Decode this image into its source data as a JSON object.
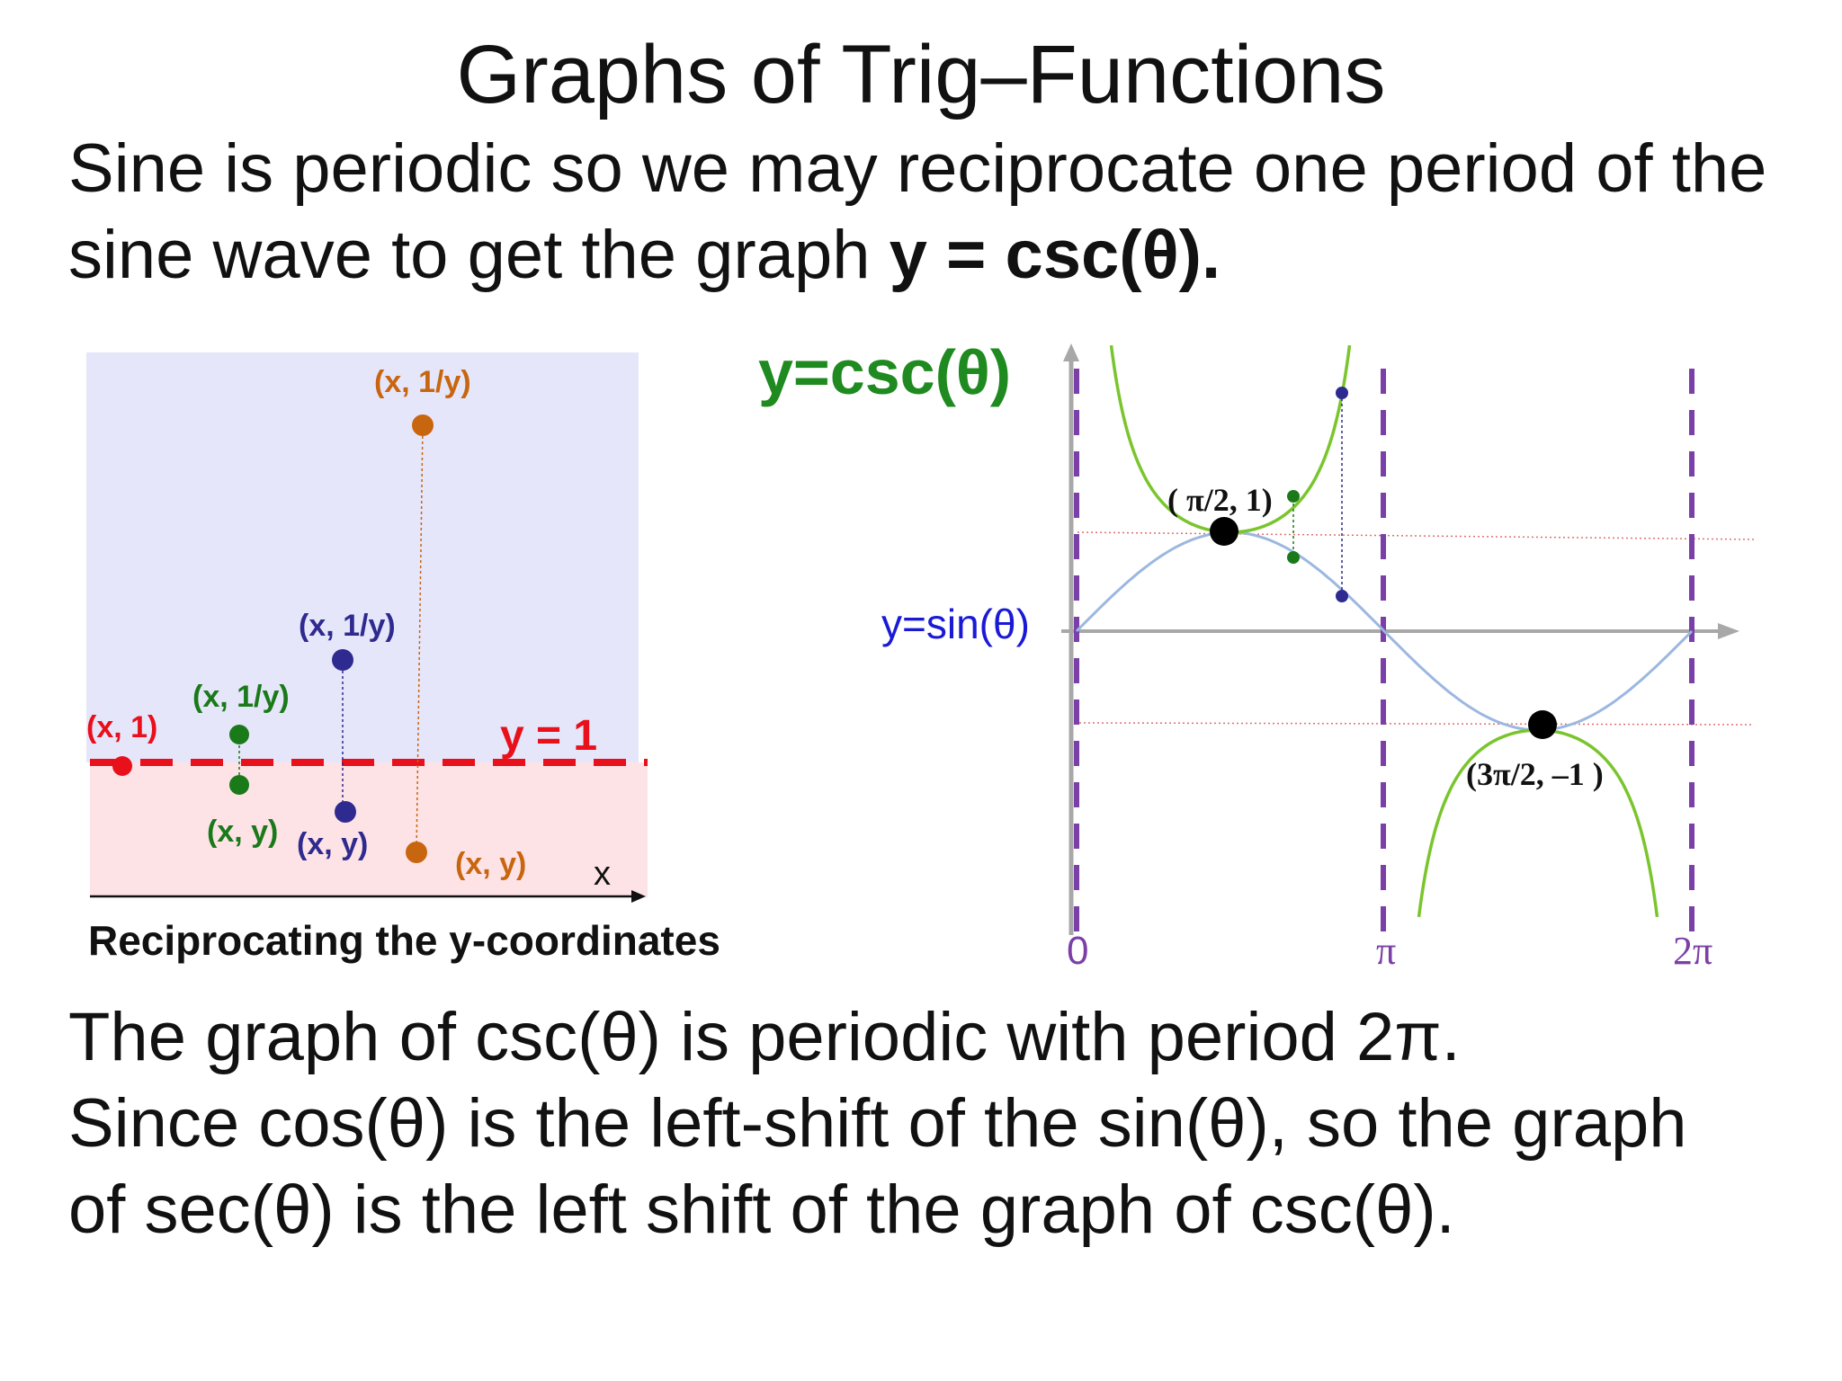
{
  "slide": {
    "title": "Graphs of Trig–Functions",
    "intro": {
      "text": "Sine is periodic so we may reciprocate one period of the sine wave to get the graph ",
      "bold_tail": "y = csc(θ)."
    },
    "footer_lines": [
      "The graph of csc(θ) is periodic with period 2π.",
      "Since cos(θ) is the left-shift of the sin(θ), so the graph",
      "of sec(θ) is the left shift of the graph of csc(θ)."
    ]
  },
  "left_figure": {
    "caption": "Reciprocating the y-coordinates",
    "line_label": "y = 1",
    "axis_label": "x",
    "point_labels": {
      "red": "(x, 1)",
      "green_top": "(x, 1/y)",
      "green_bottom": "(x, y)",
      "blue_top": "(x, 1/y)",
      "blue_bottom": "(x, y)",
      "orange_top": "(x, 1/y)",
      "orange_bottom": "(x, y)"
    },
    "colors": {
      "red": "#e8101b",
      "green": "#1a7a1a",
      "blue": "#2e2a8f",
      "orange": "#c8660f",
      "upper_fill": "#e6e6fb",
      "lower_fill": "#fde3e6"
    }
  },
  "right_figure": {
    "csc_label": "y=csc(θ)",
    "sin_label": "y=sin(θ)",
    "max_label": "( π/2, 1)",
    "min_label": "(3π/2, –1 )",
    "tick_labels": [
      "0",
      "π",
      "2π"
    ],
    "colors": {
      "csc": "#7ac52d",
      "sin": "#9cb7e0",
      "asymptote": "#7b3fa8",
      "csc_label": "#1f8a1f",
      "sin_label": "#1a1ad6"
    }
  }
}
